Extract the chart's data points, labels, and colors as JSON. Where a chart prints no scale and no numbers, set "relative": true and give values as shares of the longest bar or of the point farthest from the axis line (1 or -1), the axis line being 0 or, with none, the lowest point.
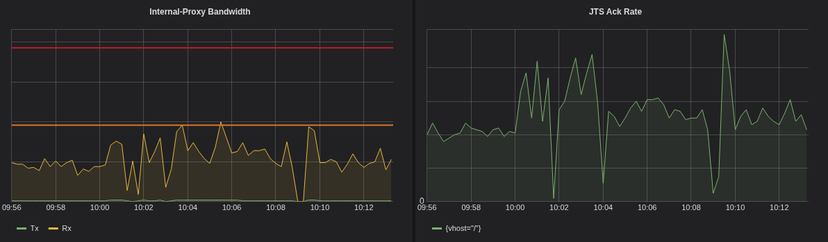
{
  "chart_data": [
    {
      "type": "area",
      "title": "Internal-Proxy Bandwidth",
      "relative": true,
      "grid": true,
      "legend": "bottom",
      "x": [
        9.9333,
        9.9375,
        9.9417,
        9.9458,
        9.95,
        9.9542,
        9.9583,
        9.9625,
        9.9667,
        9.9708,
        9.975,
        9.9792,
        9.9833,
        9.9875,
        9.9917,
        9.9958,
        10,
        10.0042,
        10.0083,
        10.0125,
        10.0167,
        10.0208,
        10.025,
        10.0292,
        10.0333,
        10.0375,
        10.0417,
        10.0458,
        10.05,
        10.0542,
        10.0583,
        10.0625,
        10.0667,
        10.0708,
        10.075,
        10.0792,
        10.0833,
        10.0875,
        10.0917,
        10.0958,
        10.1,
        10.1042,
        10.1083,
        10.1125,
        10.1167,
        10.1208,
        10.125,
        10.1292,
        10.1333,
        10.1375,
        10.1417,
        10.1458,
        10.15,
        10.1542,
        10.1583,
        10.1625,
        10.1667,
        10.1708,
        10.175,
        10.1792,
        10.1833,
        10.1875,
        10.1917,
        10.1958,
        10.2,
        10.2042,
        10.2083,
        10.2125,
        10.2167,
        10.2208
      ],
      "xlim": [
        9.9333,
        10.2222
      ],
      "xticks": [
        {
          "value": 9.9333,
          "label": "09:56"
        },
        {
          "value": 9.9667,
          "label": "09:58"
        },
        {
          "value": 10,
          "label": "10:00"
        },
        {
          "value": 10.0333,
          "label": "10:02"
        },
        {
          "value": 10.0667,
          "label": "10:04"
        },
        {
          "value": 10.1,
          "label": "10:06"
        },
        {
          "value": 10.1333,
          "label": "10:08"
        },
        {
          "value": 10.1667,
          "label": "10:10"
        },
        {
          "value": 10.2,
          "label": "10:12"
        }
      ],
      "series": [
        {
          "name": "Tx",
          "color": "#7eb26d",
          "values": [
            0.01,
            0.01,
            0.01,
            0.01,
            0.01,
            0.01,
            0.01,
            0.01,
            0.01,
            0.01,
            0.01,
            0.01,
            0.01,
            0.01,
            0.01,
            0.01,
            0.01,
            0.01,
            0.02,
            0.02,
            0.02,
            0.01,
            0,
            0.01,
            0.02,
            0.01,
            0.01,
            0.02,
            0,
            0.01,
            0.02,
            0.02,
            0.02,
            0.02,
            0.02,
            0.02,
            0.02,
            0.02,
            0.02,
            0.02,
            0.02,
            0.02,
            0.01,
            0.01,
            0.01,
            0.01,
            0.01,
            0.01,
            0.01,
            0.01,
            0.01,
            0.01,
            0,
            0,
            0.02,
            0.02,
            0.01,
            0.01,
            0.01,
            0.01,
            0.01,
            0.01,
            0.01,
            0.01,
            0.01,
            0.01,
            0.01,
            0.01,
            0.01,
            0.01
          ]
        },
        {
          "name": "Rx",
          "color": "#eab839",
          "values": [
            0.49,
            0.47,
            0.47,
            0.42,
            0.43,
            0.39,
            0.54,
            0.44,
            0.51,
            0.44,
            0.49,
            0.52,
            0.33,
            0.41,
            0.38,
            0.44,
            0.44,
            0.46,
            0.71,
            0.76,
            0.72,
            0.14,
            0.51,
            0.09,
            0.85,
            0.49,
            0.63,
            0.8,
            0.18,
            0.41,
            0.88,
            0.96,
            0.64,
            0.74,
            0.63,
            0.54,
            0.48,
            0.68,
            1,
            0.81,
            0.61,
            0.63,
            0.74,
            0.58,
            0.64,
            0.64,
            0.66,
            0.54,
            0.48,
            0.44,
            0.75,
            0.43,
            0,
            0,
            0.94,
            0.89,
            0.49,
            0.49,
            0.53,
            0.5,
            0.37,
            0.47,
            0.6,
            0.49,
            0.43,
            0.48,
            0.5,
            0.67,
            0.4,
            0.53
          ]
        }
      ],
      "ref_lines": [
        {
          "axis": "y",
          "value": 1.93,
          "color": "#c4162a"
        },
        {
          "axis": "y",
          "value": 0.96,
          "color": "#e0752d"
        }
      ]
    },
    {
      "type": "area",
      "title": "JTS Ack Rate",
      "relative": true,
      "grid": true,
      "legend": "bottom",
      "annotations": [
        "0"
      ],
      "x": [
        9.9333,
        9.9375,
        9.9417,
        9.9458,
        9.95,
        9.9542,
        9.9583,
        9.9625,
        9.9667,
        9.9708,
        9.975,
        9.9792,
        9.9833,
        9.9875,
        9.9917,
        9.9958,
        10,
        10.0042,
        10.0083,
        10.0125,
        10.0167,
        10.0208,
        10.025,
        10.0292,
        10.0333,
        10.0375,
        10.0417,
        10.0458,
        10.05,
        10.0542,
        10.0583,
        10.0625,
        10.0667,
        10.0708,
        10.075,
        10.0792,
        10.0833,
        10.0875,
        10.0917,
        10.0958,
        10.1,
        10.1042,
        10.1083,
        10.1125,
        10.1167,
        10.1208,
        10.125,
        10.1292,
        10.1333,
        10.1375,
        10.1417,
        10.1458,
        10.15,
        10.1542,
        10.1583,
        10.1625,
        10.1667,
        10.1708,
        10.175,
        10.1792,
        10.1833,
        10.1875,
        10.1917,
        10.1958,
        10.2,
        10.2042,
        10.2083,
        10.2125,
        10.2167,
        10.2208
      ],
      "xlim": [
        9.9333,
        10.2222
      ],
      "xticks": [
        {
          "value": 9.9333,
          "label": "09:56"
        },
        {
          "value": 9.9667,
          "label": "09:58"
        },
        {
          "value": 10,
          "label": "10:00"
        },
        {
          "value": 10.0333,
          "label": "10:02"
        },
        {
          "value": 10.0667,
          "label": "10:04"
        },
        {
          "value": 10.1,
          "label": "10:06"
        },
        {
          "value": 10.1333,
          "label": "10:08"
        },
        {
          "value": 10.1667,
          "label": "10:10"
        },
        {
          "value": 10.2,
          "label": "10:12"
        }
      ],
      "series": [
        {
          "name": "{vhost=\"/\"}",
          "color": "#7eb26d",
          "values": [
            0.4,
            0.47,
            0.41,
            0.36,
            0.38,
            0.4,
            0.41,
            0.47,
            0.44,
            0.43,
            0.42,
            0.39,
            0.43,
            0.44,
            0.39,
            0.42,
            0.41,
            0.66,
            0.77,
            0.5,
            0.84,
            0.48,
            0.74,
            0.02,
            0.55,
            0.6,
            0.74,
            0.86,
            0.64,
            0.77,
            0.88,
            0.59,
            0.11,
            0.54,
            0.51,
            0.45,
            0.5,
            0.56,
            0.6,
            0.54,
            0.61,
            0.61,
            0.62,
            0.58,
            0.5,
            0.55,
            0.54,
            0.49,
            0.5,
            0.5,
            0.55,
            0.43,
            0.05,
            0.15,
            1,
            0.78,
            0.43,
            0.51,
            0.55,
            0.46,
            0.48,
            0.56,
            0.51,
            0.48,
            0.46,
            0.53,
            0.61,
            0.48,
            0.52,
            0.43
          ]
        }
      ]
    }
  ]
}
